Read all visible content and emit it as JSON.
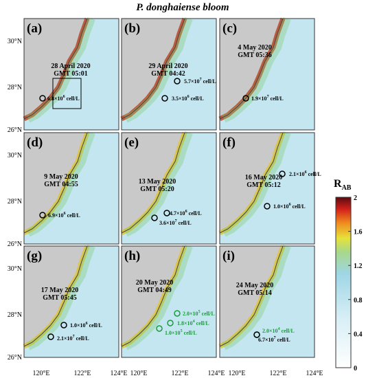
{
  "title": "P. donghaiense bloom",
  "axes": {
    "lat_labels": [
      "30°N",
      "28°N",
      "26°N"
    ],
    "lon_labels": [
      "120°E",
      "122°E",
      "124°E"
    ]
  },
  "colorbar": {
    "label": "R",
    "label_sub": "AB",
    "lim": [
      0,
      2
    ],
    "ticks": [
      0,
      0.4,
      0.8,
      1.2,
      1.6,
      2
    ]
  },
  "panels": [
    {
      "label": "(a)",
      "date": "28 April 2020",
      "time": "GMT 05:01",
      "annotations": [
        {
          "mantissa": "6.8×10",
          "exp": "6",
          "unit": "cell/L",
          "color": "#000000"
        }
      ]
    },
    {
      "label": "(b)",
      "date": "29 April 2020",
      "time": "GMT 04:42",
      "annotations": [
        {
          "mantissa": "5.7×10",
          "exp": "7",
          "unit": "cell/L",
          "color": "#000000"
        },
        {
          "mantissa": "3.5×10",
          "exp": "6",
          "unit": "cell/L",
          "color": "#000000"
        }
      ]
    },
    {
      "label": "(c)",
      "date": "4 May 2020",
      "time": "GMT 05:36",
      "annotations": [
        {
          "mantissa": "1.9×10",
          "exp": "7",
          "unit": "cell/L",
          "color": "#000000"
        }
      ]
    },
    {
      "label": "(d)",
      "date": "9 May 2020",
      "time": "GMT 04:55",
      "annotations": [
        {
          "mantissa": "6.9×10",
          "exp": "6",
          "unit": "cell/L",
          "color": "#000000"
        }
      ]
    },
    {
      "label": "(e)",
      "date": "13 May 2020",
      "time": "GMT 05:20",
      "annotations": [
        {
          "mantissa": "4.7×10",
          "exp": "6",
          "unit": "cell/L",
          "color": "#000000"
        },
        {
          "mantissa": "3.6×10",
          "exp": "7",
          "unit": "cell/L",
          "color": "#000000"
        }
      ]
    },
    {
      "label": "(f)",
      "date": "16 May 2020",
      "time": "GMT 05:12",
      "annotations": [
        {
          "mantissa": "2.1×10",
          "exp": "6",
          "unit": "cell/L",
          "color": "#000000"
        },
        {
          "mantissa": "1.0×10",
          "exp": "6",
          "unit": "cell/L",
          "color": "#000000"
        }
      ]
    },
    {
      "label": "(g)",
      "date": "17 May 2020",
      "time": "GMT 05:45",
      "annotations": [
        {
          "mantissa": "1.0×10",
          "exp": "6",
          "unit": "cell/L",
          "color": "#000000"
        },
        {
          "mantissa": "2.1×10",
          "exp": "7",
          "unit": "cell/L",
          "color": "#000000"
        }
      ]
    },
    {
      "label": "(h)",
      "date": "20 May 2020",
      "time": "GMT 04:49",
      "annotations": [
        {
          "mantissa": "2.0×10",
          "exp": "5",
          "unit": "cell/L",
          "color": "#1a9a3a"
        },
        {
          "mantissa": "1.8×10",
          "exp": "4",
          "unit": "cell/L",
          "color": "#1a9a3a"
        },
        {
          "mantissa": "1.0×10",
          "exp": "5",
          "unit": "cell/L",
          "color": "#1a9a3a"
        }
      ]
    },
    {
      "label": "(i)",
      "date": "24 May 2020",
      "time": "GMT 05:14",
      "annotations": [
        {
          "mantissa": "2.0×10",
          "exp": "4",
          "unit": "cell/L",
          "color": "#1a9a3a"
        },
        {
          "mantissa": "6.7×10",
          "exp": "7",
          "unit": "cell/L",
          "color": "#000000"
        }
      ]
    }
  ]
}
